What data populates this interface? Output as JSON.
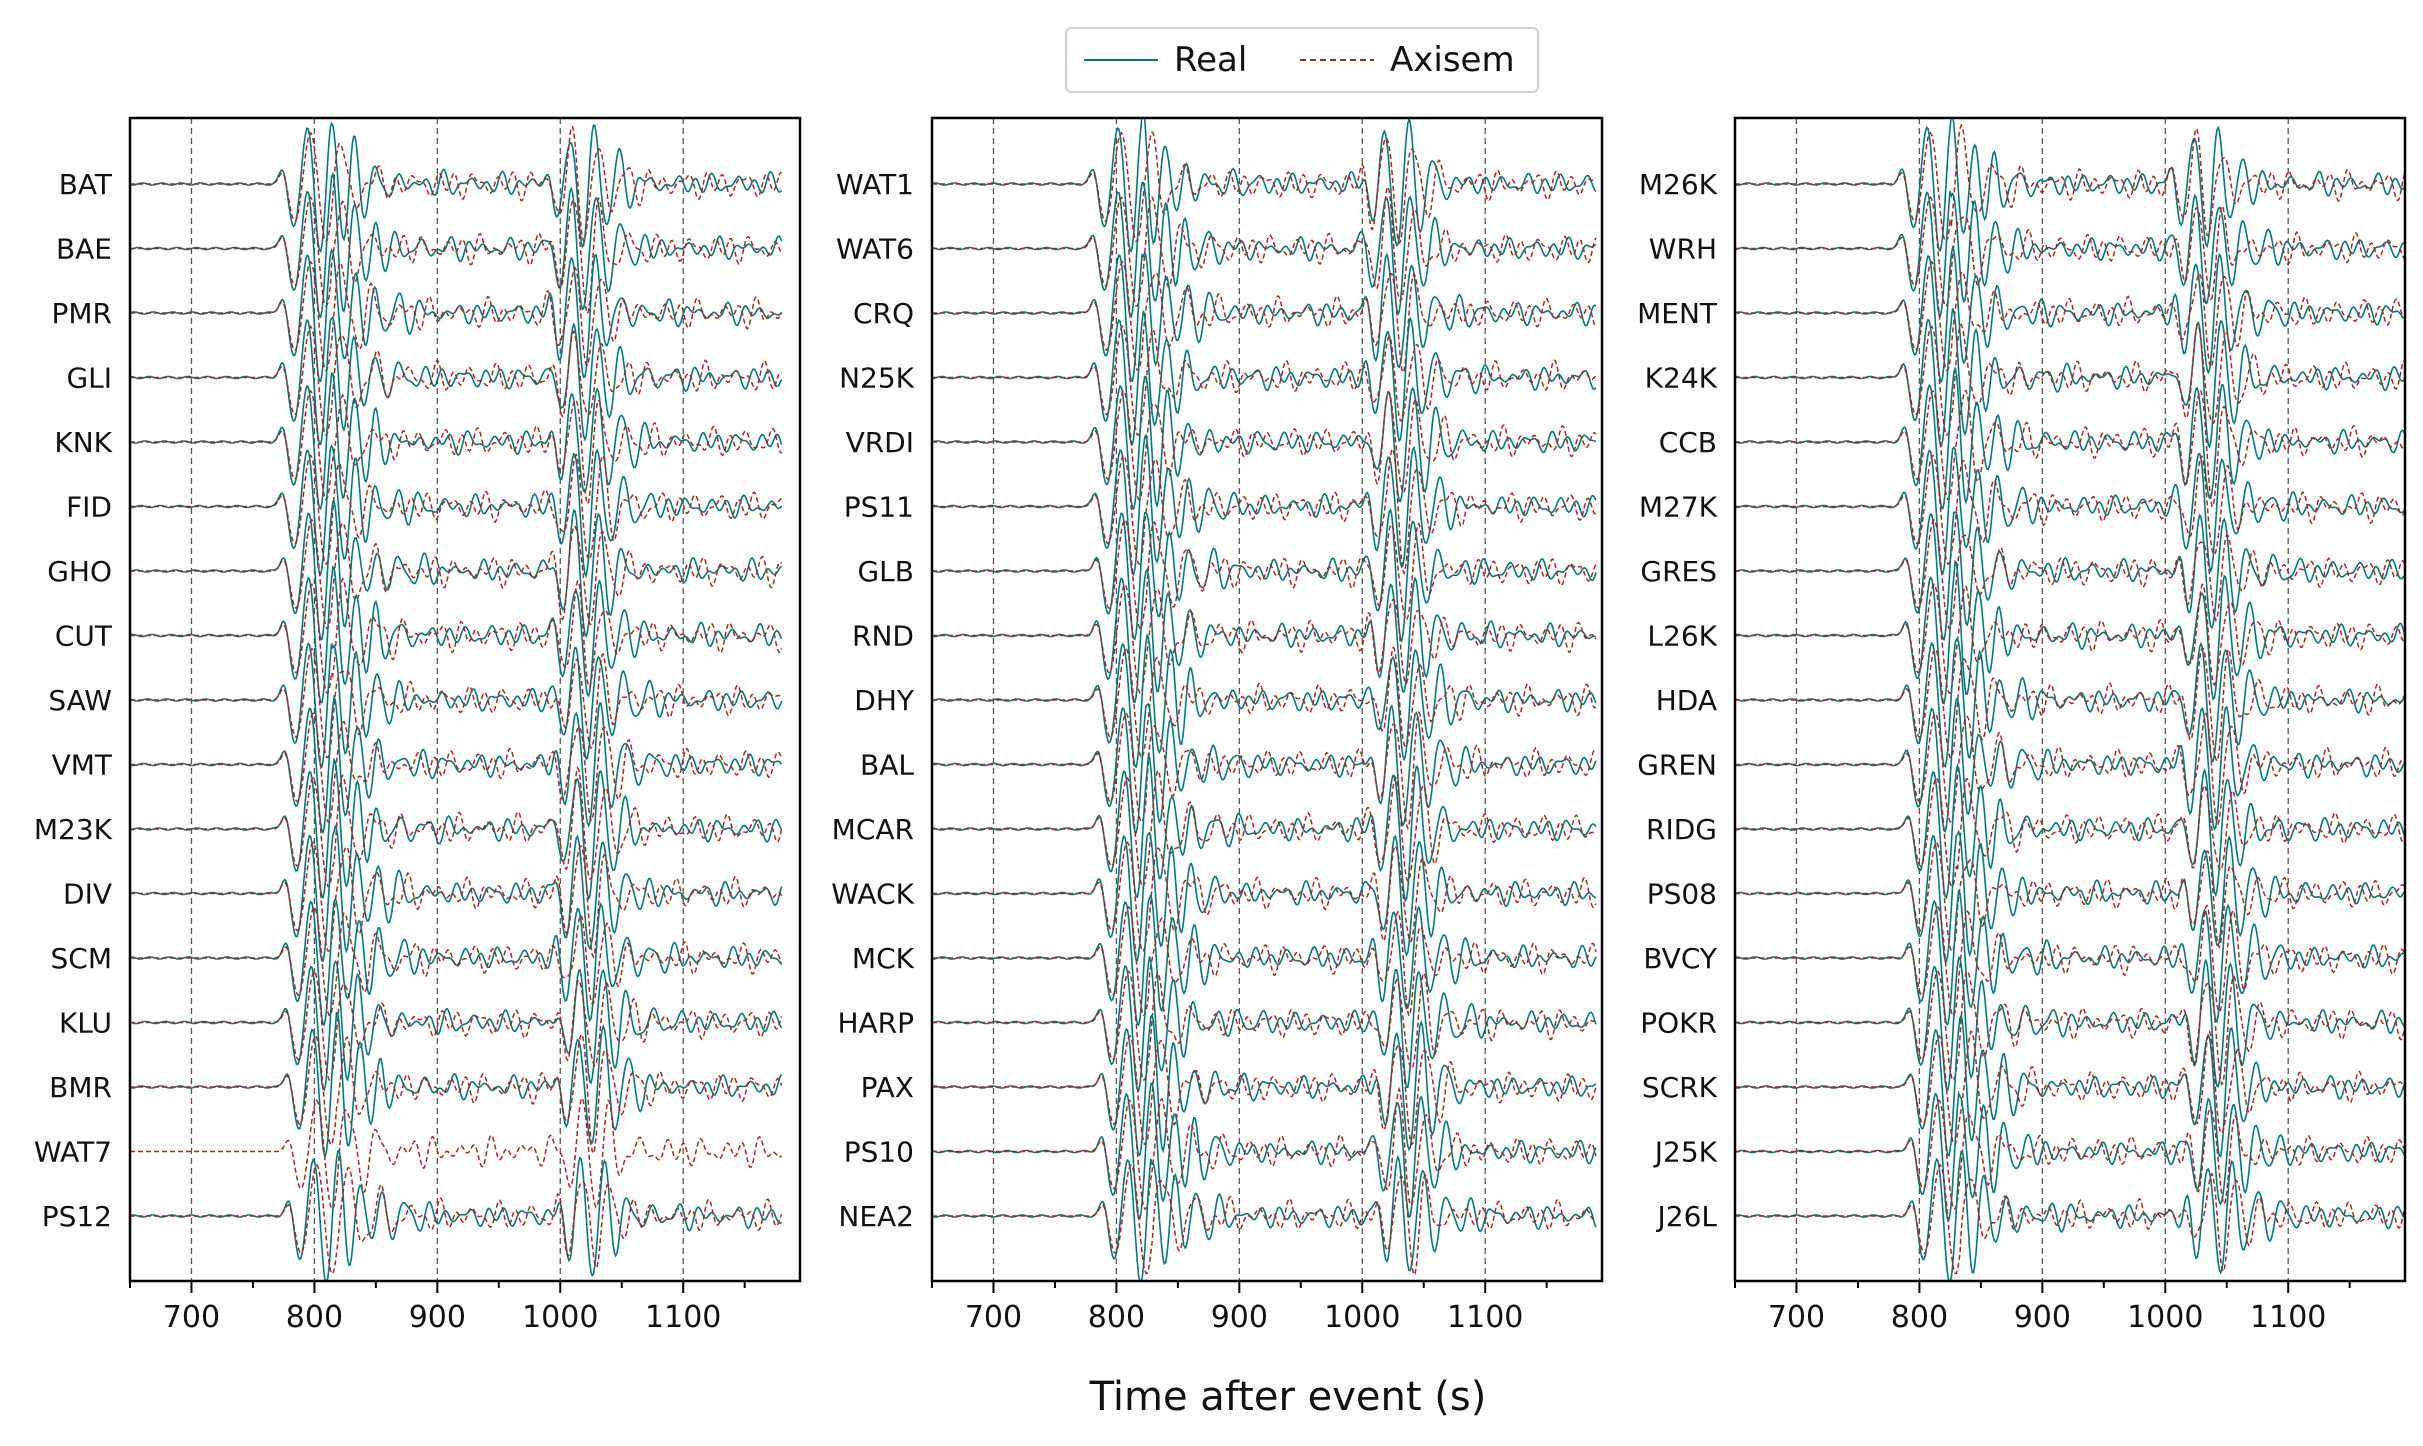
{
  "xlabel": "Time after event (s)",
  "colors": {
    "real": "#007b7b",
    "axisem": "#b22222",
    "grid": "#555555"
  },
  "legend": {
    "placement": "top-center",
    "entries": [
      {
        "key": "real",
        "label": "Real",
        "style": "solid"
      },
      {
        "key": "axisem",
        "label": "Axisem",
        "style": "dashed"
      }
    ]
  },
  "chart_data": [
    {
      "type": "line",
      "xlim": [
        650,
        1195
      ],
      "xticks": [
        700,
        800,
        900,
        1000,
        1100
      ],
      "xtick_labels": [
        "700",
        "800",
        "900",
        "1000",
        "1100"
      ],
      "gridlines_x": [
        700,
        800,
        900,
        1000,
        1100
      ],
      "grid": "vertical dashed",
      "stations": [
        "BAT",
        "BAE",
        "PMR",
        "GLI",
        "KNK",
        "FID",
        "GHO",
        "CUT",
        "SAW",
        "VMT",
        "M23K",
        "DIV",
        "SCM",
        "KLU",
        "BMR",
        "WAT7",
        "PS12"
      ],
      "real_missing": [
        "WAT7"
      ],
      "arrival_1_s": [
        773,
        773,
        773,
        773,
        773,
        773,
        774,
        774,
        774,
        775,
        775,
        775,
        776,
        776,
        777,
        778,
        778
      ],
      "arrival_2_s": [
        990,
        991,
        991,
        992,
        992,
        993,
        993,
        994,
        994,
        995,
        995,
        996,
        996,
        997,
        997,
        998,
        998
      ],
      "end_s": 1180,
      "series": [
        {
          "name": "Real"
        },
        {
          "name": "Axisem"
        }
      ]
    },
    {
      "type": "line",
      "xlim": [
        650,
        1195
      ],
      "xticks": [
        700,
        800,
        900,
        1000,
        1100
      ],
      "xtick_labels": [
        "700",
        "800",
        "900",
        "1000",
        "1100"
      ],
      "gridlines_x": [
        700,
        800,
        900,
        1000,
        1100
      ],
      "grid": "vertical dashed",
      "stations": [
        "WAT1",
        "WAT6",
        "CRQ",
        "N25K",
        "VRDI",
        "PS11",
        "GLB",
        "RND",
        "DHY",
        "BAL",
        "MCAR",
        "WACK",
        "MCK",
        "HARP",
        "PAX",
        "PS10",
        "NEA2"
      ],
      "real_missing": [],
      "arrival_1_s": [
        780,
        780,
        781,
        781,
        782,
        782,
        783,
        783,
        784,
        784,
        785,
        785,
        786,
        786,
        787,
        787,
        788
      ],
      "arrival_2_s": [
        1000,
        1001,
        1002,
        1002,
        1003,
        1004,
        1004,
        1005,
        1006,
        1006,
        1007,
        1008,
        1008,
        1009,
        1010,
        1010,
        1011
      ],
      "end_s": 1190,
      "series": [
        {
          "name": "Real"
        },
        {
          "name": "Axisem"
        }
      ]
    },
    {
      "type": "line",
      "xlim": [
        650,
        1195
      ],
      "xticks": [
        700,
        800,
        900,
        1000,
        1100
      ],
      "xtick_labels": [
        "700",
        "800",
        "900",
        "1000",
        "1100"
      ],
      "gridlines_x": [
        700,
        800,
        900,
        1000,
        1100
      ],
      "grid": "vertical dashed",
      "stations": [
        "M26K",
        "WRH",
        "MENT",
        "K24K",
        "CCB",
        "M27K",
        "GRES",
        "L26K",
        "HDA",
        "GREN",
        "RIDG",
        "PS08",
        "BVCY",
        "POKR",
        "SCRK",
        "J25K",
        "J26L"
      ],
      "real_missing": [],
      "arrival_1_s": [
        785,
        785,
        786,
        786,
        787,
        787,
        788,
        788,
        789,
        789,
        790,
        790,
        791,
        791,
        792,
        792,
        793
      ],
      "arrival_2_s": [
        1005,
        1006,
        1007,
        1008,
        1008,
        1009,
        1010,
        1011,
        1011,
        1012,
        1013,
        1014,
        1014,
        1015,
        1016,
        1017,
        1017
      ],
      "end_s": 1195,
      "series": [
        {
          "name": "Real"
        },
        {
          "name": "Axisem"
        }
      ]
    }
  ]
}
